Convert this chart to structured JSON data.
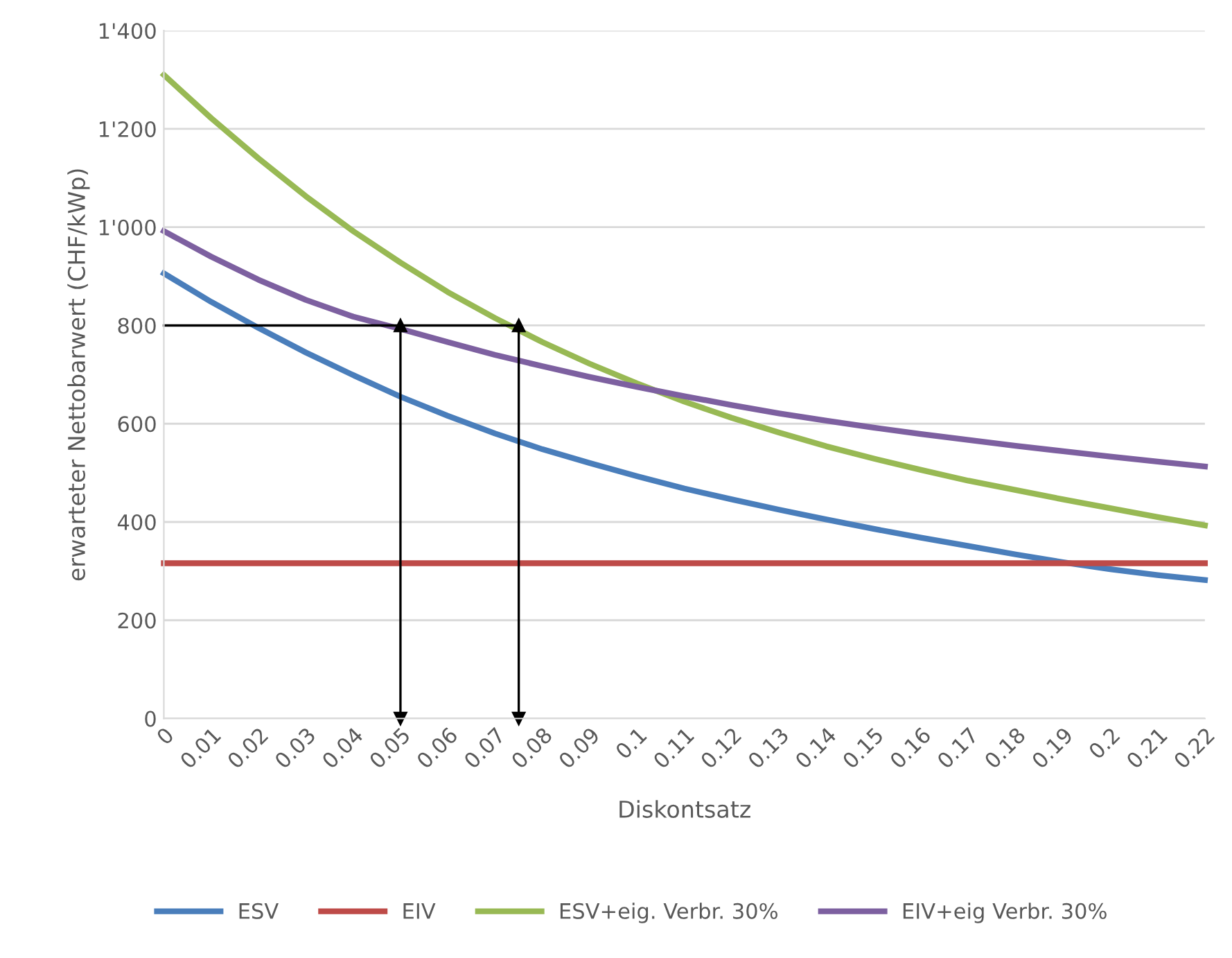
{
  "chart_data": {
    "type": "line",
    "xlabel": "Diskontsatz",
    "ylabel": "erwarteter Nettobarwert (CHF/kWp)",
    "x": [
      0,
      0.01,
      0.02,
      0.03,
      0.04,
      0.05,
      0.06,
      0.07,
      0.08,
      0.09,
      0.1,
      0.11,
      0.12,
      0.13,
      0.14,
      0.15,
      0.16,
      0.17,
      0.18,
      0.19,
      0.2,
      0.21,
      0.22
    ],
    "series": [
      {
        "name": "ESV",
        "color": "#4a7ebb",
        "values": [
          906,
          848,
          795,
          745,
          699,
          655,
          616,
          580,
          548,
          520,
          493,
          468,
          446,
          425,
          405,
          386,
          368,
          351,
          334,
          318,
          304,
          292,
          282
        ]
      },
      {
        "name": "EIV",
        "color": "#be4b48",
        "values": [
          316,
          316,
          316,
          316,
          316,
          316,
          316,
          316,
          316,
          316,
          316,
          316,
          316,
          316,
          316,
          316,
          316,
          316,
          316,
          316,
          316,
          316,
          316
        ]
      },
      {
        "name": "ESV+eig. Verbr. 30%",
        "color": "#98b954",
        "values": [
          1310,
          1222,
          1140,
          1063,
          992,
          928,
          868,
          815,
          766,
          722,
          682,
          645,
          612,
          582,
          554,
          529,
          506,
          484,
          465,
          446,
          428,
          410,
          393
        ]
      },
      {
        "name": "EIV+eig Verbr. 30%",
        "color": "#7d60a0",
        "values": [
          992,
          940,
          893,
          852,
          818,
          793,
          766,
          740,
          717,
          695,
          675,
          656,
          638,
          621,
          606,
          592,
          579,
          567,
          555,
          544,
          533,
          523,
          513
        ]
      },
      {
        "color": "#000000",
        "x": [
          0,
          0.075
        ],
        "values": [
          800,
          800
        ]
      },
      {
        "color": "#000000",
        "x": [
          0.05,
          0.05
        ],
        "values": [
          0,
          800
        ],
        "marker": "triangle"
      },
      {
        "color": "#000000",
        "x": [
          0.075,
          0.075
        ],
        "values": [
          0,
          800
        ],
        "marker": "triangle"
      }
    ],
    "xlim": [
      0,
      0.22
    ],
    "xticks": [
      0,
      0.01,
      0.02,
      0.03,
      0.04,
      0.05,
      0.06,
      0.07,
      0.08,
      0.09,
      0.1,
      0.11,
      0.12,
      0.13,
      0.14,
      0.15,
      0.16,
      0.17,
      0.18,
      0.19,
      0.2,
      0.21,
      0.22
    ],
    "ylim": [
      0,
      1400
    ],
    "yticks": [
      0,
      200,
      400,
      600,
      800,
      {
        "value": 1000,
        "label": "1'000"
      },
      {
        "value": 1200,
        "label": "1'200"
      },
      {
        "value": 1400,
        "label": "1'400"
      }
    ],
    "grid": "y",
    "legend": "bottom"
  }
}
